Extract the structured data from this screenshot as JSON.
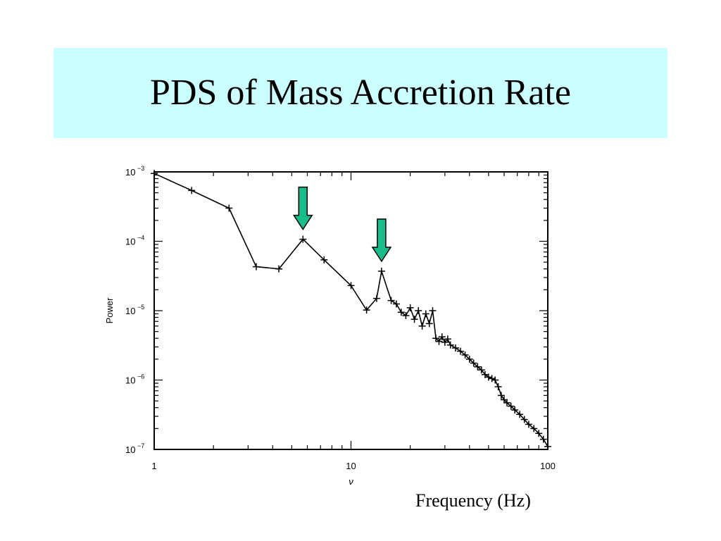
{
  "slide": {
    "title": "PDS of Mass Accretion Rate",
    "frequency_caption": "Frequency (Hz)"
  },
  "colors": {
    "title_band": "#ccffff",
    "arrow_fill": "#1abc8c",
    "arrow_stroke": "#000000",
    "line": "#000000"
  },
  "chart_data": {
    "type": "line",
    "xscale": "log",
    "yscale": "log",
    "xlabel": "ν",
    "ylabel": "Power",
    "xlim": [
      1,
      100
    ],
    "ylim": [
      1e-07,
      0.001
    ],
    "x_ticks": [
      {
        "value": 1,
        "label": "1"
      },
      {
        "value": 10,
        "label": "10"
      },
      {
        "value": 100,
        "label": "100"
      }
    ],
    "y_ticks": [
      {
        "value": 0.001,
        "base": "10",
        "exp": "−3"
      },
      {
        "value": 0.0001,
        "base": "10",
        "exp": "−4"
      },
      {
        "value": 1e-05,
        "base": "10",
        "exp": "−5"
      },
      {
        "value": 1e-06,
        "base": "10",
        "exp": "−6"
      },
      {
        "value": 1e-07,
        "base": "10",
        "exp": "−7"
      }
    ],
    "marker": "plus",
    "grid": false,
    "x": [
      1,
      1.55,
      2.4,
      3.3,
      4.3,
      5.7,
      7.3,
      10,
      12,
      13.5,
      14.3,
      16,
      17,
      18,
      19,
      20,
      21,
      22,
      23,
      24,
      25,
      26,
      27,
      28,
      29,
      30,
      31,
      32,
      34,
      36,
      38,
      40,
      42,
      44,
      46,
      48,
      50,
      52,
      54,
      56,
      58,
      60,
      62,
      65,
      68,
      72,
      76,
      80,
      85,
      90,
      95,
      100
    ],
    "y": [
      0.00095,
      0.00054,
      0.0003,
      4.3e-05,
      4e-05,
      0.000107,
      5.4e-05,
      2.3e-05,
      1.02e-05,
      1.5e-05,
      3.7e-05,
      1.4e-05,
      1.25e-05,
      9.5e-06,
      8.5e-06,
      1.1e-05,
      7.5e-06,
      1e-05,
      6e-06,
      9e-06,
      6.5e-06,
      1e-05,
      4e-06,
      3.6e-06,
      4.2e-06,
      3.5e-06,
      3.9e-06,
      3.2e-06,
      2.9e-06,
      2.6e-06,
      2.3e-06,
      2e-06,
      1.75e-06,
      1.55e-06,
      1.4e-06,
      1.2e-06,
      1.1e-06,
      1.05e-06,
      1e-06,
      8e-07,
      6e-07,
      5.2e-07,
      4.7e-07,
      4.2e-07,
      3.7e-07,
      3.2e-07,
      2.7e-07,
      2.3e-07,
      2e-07,
      1.7e-07,
      1.4e-07,
      1.1e-07
    ],
    "annotations": [
      {
        "type": "arrow-down",
        "x": 5.7,
        "y": 0.000107
      },
      {
        "type": "arrow-down",
        "x": 14.3,
        "y": 3.7e-05
      }
    ]
  }
}
